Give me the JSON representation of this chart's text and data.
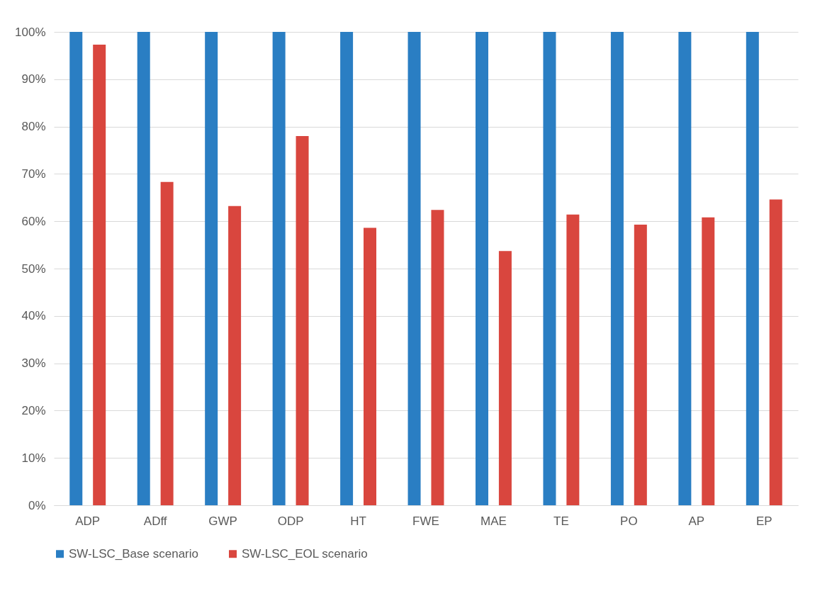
{
  "chart_data": {
    "type": "bar",
    "categories": [
      "ADP",
      "ADff",
      "GWP",
      "ODP",
      "HT",
      "FWE",
      "MAE",
      "TE",
      "PO",
      "AP",
      "EP"
    ],
    "series": [
      {
        "name": "SW-LSC_Base scenario",
        "color": "#2a7ec3",
        "values": [
          100,
          100,
          100,
          100,
          100,
          100,
          100,
          100,
          100,
          100,
          100
        ]
      },
      {
        "name": "SW-LSC_EOL scenario",
        "color": "#d9463e",
        "values": [
          97.3,
          68.3,
          63.2,
          78,
          58.6,
          62.4,
          53.7,
          61.4,
          59.3,
          60.8,
          64.6
        ]
      }
    ],
    "ylim": [
      0,
      100
    ],
    "yticks": [
      {
        "value": 0,
        "label": "0%"
      },
      {
        "value": 10,
        "label": "10%"
      },
      {
        "value": 20,
        "label": "20%"
      },
      {
        "value": 30,
        "label": "30%"
      },
      {
        "value": 40,
        "label": "40%"
      },
      {
        "value": 50,
        "label": "50%"
      },
      {
        "value": 60,
        "label": "60%"
      },
      {
        "value": 70,
        "label": "70%"
      },
      {
        "value": 80,
        "label": "80%"
      },
      {
        "value": 90,
        "label": "90%"
      },
      {
        "value": 100,
        "label": "100%"
      }
    ],
    "grid": "y",
    "legend": "bottom"
  }
}
